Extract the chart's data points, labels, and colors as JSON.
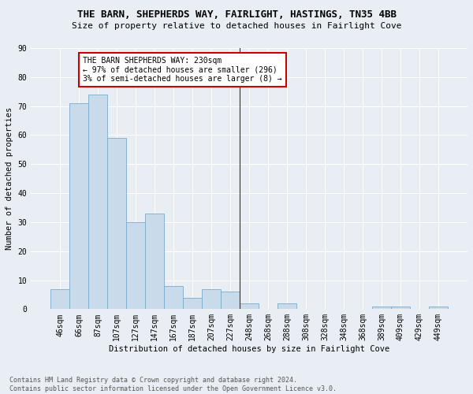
{
  "title": "THE BARN, SHEPHERDS WAY, FAIRLIGHT, HASTINGS, TN35 4BB",
  "subtitle": "Size of property relative to detached houses in Fairlight Cove",
  "xlabel": "Distribution of detached houses by size in Fairlight Cove",
  "ylabel": "Number of detached properties",
  "footnote": "Contains HM Land Registry data © Crown copyright and database right 2024.\nContains public sector information licensed under the Open Government Licence v3.0.",
  "bar_labels": [
    "46sqm",
    "66sqm",
    "87sqm",
    "107sqm",
    "127sqm",
    "147sqm",
    "167sqm",
    "187sqm",
    "207sqm",
    "227sqm",
    "248sqm",
    "268sqm",
    "288sqm",
    "308sqm",
    "328sqm",
    "348sqm",
    "368sqm",
    "389sqm",
    "409sqm",
    "429sqm",
    "449sqm"
  ],
  "bar_values": [
    7,
    71,
    74,
    59,
    30,
    33,
    8,
    4,
    7,
    6,
    2,
    0,
    2,
    0,
    0,
    0,
    0,
    1,
    1,
    0,
    1
  ],
  "bar_color": "#c9daea",
  "bar_edge_color": "#7baacb",
  "vline_x_index": 10,
  "annotation_text": "THE BARN SHEPHERDS WAY: 230sqm\n← 97% of detached houses are smaller (296)\n3% of semi-detached houses are larger (8) →",
  "annotation_box_color": "#ffffff",
  "annotation_box_edge": "#cc0000",
  "ylim": [
    0,
    90
  ],
  "background_color": "#e8eef4",
  "plot_bg_color": "#e8eef4",
  "grid_color": "#ffffff",
  "title_fontsize": 9,
  "subtitle_fontsize": 8,
  "axis_label_fontsize": 7.5,
  "tick_fontsize": 7,
  "annotation_fontsize": 7,
  "footnote_fontsize": 6
}
